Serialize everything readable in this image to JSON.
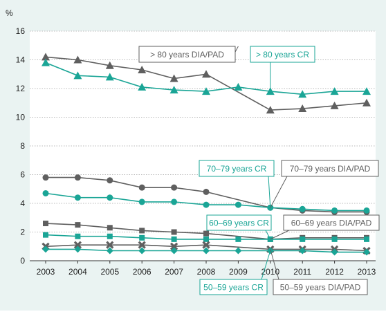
{
  "chart_data": {
    "type": "line",
    "y_unit": "%",
    "ylim": [
      0,
      16
    ],
    "y_ticks": [
      "0",
      "2",
      "4",
      "6",
      "8",
      "10",
      "12",
      "14",
      "16"
    ],
    "x": [
      "2003",
      "2004",
      "2005",
      "2006",
      "2007",
      "2008",
      "2009",
      "2010",
      "2011",
      "2012",
      "2013"
    ],
    "grid": "horizontal",
    "colors": {
      "teal": "#1aa596",
      "dark": "#5f5f5f",
      "panel": "#eaf3f2"
    },
    "series": [
      {
        "name": "> 80 years DIA/PAD",
        "color": "#5f5f5f",
        "marker": "triangle",
        "values": [
          14.2,
          14.0,
          13.6,
          13.3,
          12.7,
          13.0,
          null,
          10.5,
          10.6,
          10.8,
          11.0
        ]
      },
      {
        "name": "> 80 years CR",
        "color": "#1aa596",
        "marker": "triangle",
        "values": [
          13.8,
          12.9,
          12.8,
          12.1,
          11.9,
          11.8,
          12.1,
          11.8,
          11.6,
          11.8,
          11.8
        ]
      },
      {
        "name": "70–79 years DIA/PAD",
        "color": "#5f5f5f",
        "marker": "circle",
        "values": [
          5.8,
          5.8,
          5.6,
          5.1,
          5.1,
          4.8,
          null,
          3.7,
          3.5,
          3.4,
          3.4
        ]
      },
      {
        "name": "70–79 years CR",
        "color": "#1aa596",
        "marker": "circle",
        "values": [
          4.7,
          4.4,
          4.4,
          4.1,
          4.1,
          3.9,
          3.9,
          3.7,
          3.6,
          3.5,
          3.5
        ]
      },
      {
        "name": "60–69 years DIA/PAD",
        "color": "#5f5f5f",
        "marker": "square",
        "values": [
          2.6,
          2.5,
          2.3,
          2.1,
          2.0,
          1.9,
          null,
          1.5,
          1.6,
          1.6,
          1.6
        ]
      },
      {
        "name": "60–69 years CR",
        "color": "#1aa596",
        "marker": "square",
        "values": [
          1.8,
          1.7,
          1.7,
          1.6,
          1.5,
          1.5,
          1.5,
          1.5,
          1.5,
          1.5,
          1.5
        ]
      },
      {
        "name": "50–59 years DIA/PAD",
        "color": "#5f5f5f",
        "marker": "x",
        "values": [
          1.0,
          1.1,
          1.1,
          1.1,
          1.0,
          1.1,
          null,
          0.8,
          0.8,
          0.8,
          0.7
        ]
      },
      {
        "name": "50–59 years CR",
        "color": "#1aa596",
        "marker": "diamond",
        "values": [
          0.8,
          0.8,
          0.7,
          0.7,
          0.7,
          0.7,
          0.7,
          0.7,
          0.7,
          0.6,
          0.6
        ]
      }
    ],
    "annotations": [
      {
        "text": "> 80 years DIA/PAD",
        "series": "> 80 years DIA/PAD",
        "color": "#5f5f5f"
      },
      {
        "text": "> 80 years CR",
        "series": "> 80 years CR",
        "color": "#1aa596"
      },
      {
        "text": "70–79 years CR",
        "series": "70–79 years CR",
        "color": "#1aa596"
      },
      {
        "text": "70–79 years DIA/PAD",
        "series": "70–79 years DIA/PAD",
        "color": "#5f5f5f"
      },
      {
        "text": "60–69 years CR",
        "series": "60–69 years CR",
        "color": "#1aa596"
      },
      {
        "text": "60–69 years DIA/PAD",
        "series": "60–69 years DIA/PAD",
        "color": "#5f5f5f"
      },
      {
        "text": "50–59 years CR",
        "series": "50–59 years CR",
        "color": "#1aa596"
      },
      {
        "text": "50–59 years DIA/PAD",
        "series": "50–59 years DIA/PAD",
        "color": "#5f5f5f"
      }
    ]
  }
}
